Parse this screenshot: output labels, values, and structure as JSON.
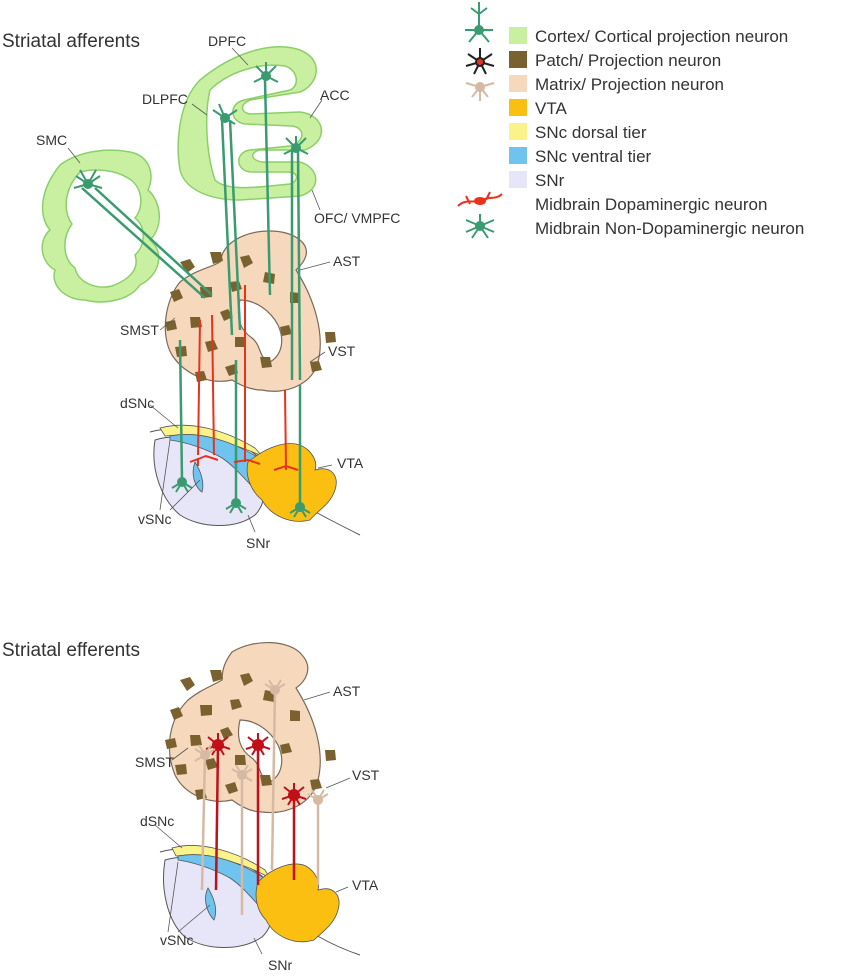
{
  "sections": {
    "afferents_title": "Striatal afferents",
    "efferents_title": "Striatal efferents"
  },
  "labels": {
    "dpfc": "DPFC",
    "dlpfc": "DLPFC",
    "acc": "ACC",
    "smc": "SMC",
    "ofc": "OFC/ VMPFC",
    "ast": "AST",
    "smst": "SMST",
    "vst": "VST",
    "dsnc": "dSNc",
    "vta": "VTA",
    "vsnc": "vSNc",
    "snr": "SNr"
  },
  "legend": {
    "items": [
      {
        "label": "Cortex/ Cortical projection neuron",
        "color": "#c8f0a0",
        "icon": "cortical-neuron-icon"
      },
      {
        "label": "Patch/ Projection neuron",
        "color": "#7a6230",
        "icon": "patch-neuron-icon"
      },
      {
        "label": "Matrix/ Projection neuron",
        "color": "#f6d9bd",
        "icon": "matrix-neuron-icon"
      },
      {
        "label": "VTA",
        "color": "#fbbf12"
      },
      {
        "label": "SNc dorsal tier",
        "color": "#fbf38a"
      },
      {
        "label": "SNc ventral tier",
        "color": "#6ec3ef"
      },
      {
        "label": "SNr",
        "color": "#e6e6f8"
      },
      {
        "label": "Midbrain Dopaminergic neuron",
        "color": "#e8321c",
        "icon": "dopaminergic-neuron-icon"
      },
      {
        "label": "Midbrain Non-Dopaminergic neuron",
        "color": "#3a9a70",
        "icon": "non-dopaminergic-neuron-icon"
      }
    ]
  },
  "colors": {
    "cortex": "#c8f0a0",
    "cortex_edge": "#8ccf6a",
    "patch": "#7a6230",
    "matrix": "#f6d9bd",
    "matrix_edge": "#7a6a5a",
    "vta": "#fbbf12",
    "snc_dorsal": "#fbf38a",
    "snc_ventral": "#6ec3ef",
    "snr": "#e6e6f8",
    "green_axon": "#3a9a70",
    "red_axon": "#e8321c",
    "dark_red": "#c0101a",
    "tan_axon": "#d6b9a3"
  }
}
